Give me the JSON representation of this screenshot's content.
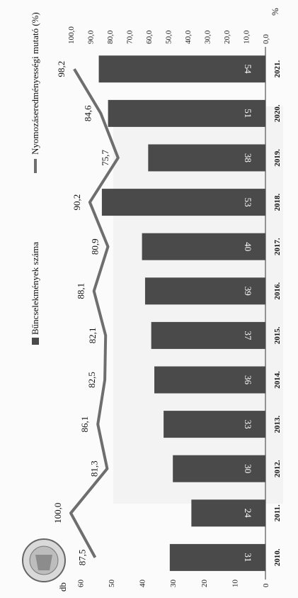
{
  "chart_data": {
    "type": "bar",
    "title": "",
    "categories": [
      "2010.",
      "2011.",
      "2012.",
      "2013.",
      "2014.",
      "2015.",
      "2016.",
      "2017.",
      "2018.",
      "2019.",
      "2020.",
      "2021."
    ],
    "series": [
      {
        "name": "Bűncselekmények száma",
        "kind": "bar",
        "axis": "left",
        "values": [
          31,
          24,
          30,
          33,
          36,
          37,
          39,
          40,
          53,
          38,
          51,
          54
        ]
      },
      {
        "name": "Nyomozáseredményességi mutató (%)",
        "kind": "line",
        "axis": "right",
        "values": [
          87.5,
          100.0,
          81.3,
          86.1,
          82.5,
          82.1,
          88.1,
          80.9,
          90.2,
          75.7,
          84.6,
          98.2
        ]
      }
    ],
    "bar_labels": [
      "31",
      "24",
      "30",
      "33",
      "36",
      "37",
      "39",
      "40",
      "53",
      "38",
      "51",
      "54"
    ],
    "line_labels": [
      "87,5",
      "100,0",
      "81,3",
      "86,1",
      "82,5",
      "82,1",
      "88,1",
      "80,9",
      "90,2",
      "75,7",
      "84,6",
      "98,2"
    ],
    "left_axis": {
      "unit": "db",
      "min": 0,
      "max": 60,
      "ticks": [
        "0",
        "10",
        "20",
        "30",
        "40",
        "50",
        "60"
      ]
    },
    "right_axis": {
      "unit": "%",
      "min": 0,
      "max": 100,
      "ticks": [
        "0,0",
        "10,0",
        "20,0",
        "30,0",
        "40,0",
        "50,0",
        "60,0",
        "70,0",
        "80,0",
        "90,0",
        "100,0"
      ]
    },
    "orientation": "rotated 90° (categories read bottom-to-top, values grow leftward)",
    "legend_placement": "top",
    "colors": {
      "bar": "#4a4a4a",
      "line": "#6e6e6e",
      "bar_label": "#ffffff"
    }
  }
}
